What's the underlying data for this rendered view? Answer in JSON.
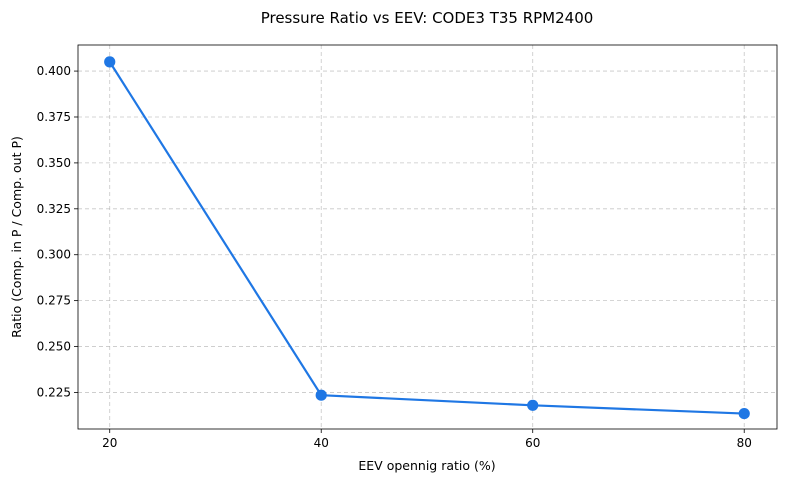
{
  "chart_data": {
    "type": "line",
    "title": "Pressure Ratio vs EEV: CODE3 T35 RPM2400",
    "xlabel": "EEV opennig ratio (%)",
    "ylabel": "Ratio (Comp. in P / Comp. out P)",
    "x": [
      20,
      40,
      60,
      80
    ],
    "x_ticks": [
      "20",
      "40",
      "60",
      "80"
    ],
    "xlim": [
      17,
      83.1
    ],
    "ylim": [
      0.2051,
      0.4142
    ],
    "y_ticks": [
      "0.225",
      "0.250",
      "0.275",
      "0.300",
      "0.325",
      "0.350",
      "0.375",
      "0.400"
    ],
    "series": [
      {
        "name": "Pressure Ratio",
        "color": "#1f77e4",
        "marker": "circle",
        "values": [
          0.405,
          0.2235,
          0.218,
          0.2135
        ]
      }
    ],
    "grid": true,
    "legend": "none"
  }
}
